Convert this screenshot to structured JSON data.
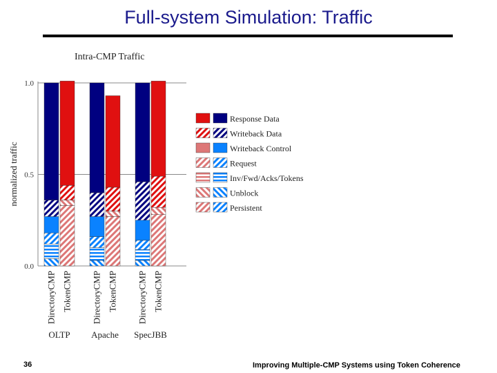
{
  "slide": {
    "title": "Full-system Simulation: Traffic",
    "page_number": "36",
    "footer": "Improving Multiple-CMP Systems using Token Coherence"
  },
  "chart_data": {
    "type": "bar",
    "stacked": true,
    "title": "Intra-CMP Traffic",
    "ylabel": "normalized traffic",
    "ylim": [
      0,
      1.0
    ],
    "yticks": [
      "0.0",
      "0.5",
      "1.0"
    ],
    "workloads": [
      "OLTP",
      "Apache",
      "SpecJBB"
    ],
    "protocols": [
      "DirectoryCMP",
      "TokenCMP"
    ],
    "components": [
      "Persistent",
      "Unblock",
      "Inv/Fwd/Acks/Tokens",
      "Request",
      "Writeback Control",
      "Writeback Data",
      "Response Data"
    ],
    "legend_order": [
      "Response Data",
      "Writeback Data",
      "Writeback Control",
      "Request",
      "Inv/Fwd/Acks/Tokens",
      "Unblock",
      "Persistent"
    ],
    "colors": {
      "DirectoryCMP": "#000080",
      "DirectoryCMP_light": "#0a82ff",
      "TokenCMP": "#e01010",
      "TokenCMP_light": "#dd7777"
    },
    "bars": [
      {
        "workload": "OLTP",
        "protocol": "DirectoryCMP",
        "values": [
          0.0,
          0.04,
          0.08,
          0.06,
          0.09,
          0.09,
          0.64
        ]
      },
      {
        "workload": "OLTP",
        "protocol": "TokenCMP",
        "values": [
          0.33,
          0.03,
          0.0,
          0.0,
          0.0,
          0.08,
          0.57
        ]
      },
      {
        "workload": "Apache",
        "protocol": "DirectoryCMP",
        "values": [
          0.0,
          0.03,
          0.07,
          0.06,
          0.11,
          0.13,
          0.6
        ]
      },
      {
        "workload": "Apache",
        "protocol": "TokenCMP",
        "values": [
          0.27,
          0.03,
          0.0,
          0.0,
          0.0,
          0.13,
          0.5
        ]
      },
      {
        "workload": "SpecJBB",
        "protocol": "DirectoryCMP",
        "values": [
          0.0,
          0.03,
          0.06,
          0.05,
          0.11,
          0.21,
          0.54
        ]
      },
      {
        "workload": "SpecJBB",
        "protocol": "TokenCMP",
        "values": [
          0.28,
          0.04,
          0.0,
          0.0,
          0.0,
          0.17,
          0.52
        ]
      }
    ]
  }
}
